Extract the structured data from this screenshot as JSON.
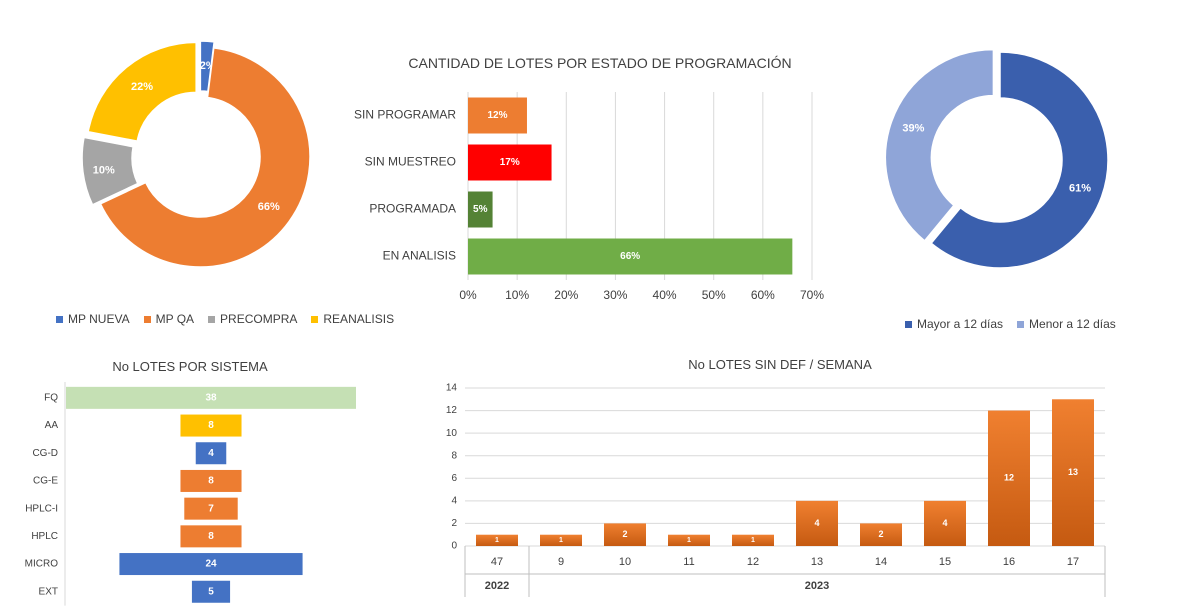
{
  "chart_data": [
    {
      "id": "donut_categoria",
      "type": "pie",
      "title": "",
      "categories": [
        "MP NUEVA",
        "MP QA",
        "PRECOMPRA",
        "REANALISIS"
      ],
      "values": [
        2,
        66,
        10,
        22
      ],
      "labels": [
        "2%",
        "66%",
        "10%",
        "22%"
      ],
      "colors": [
        "#4472C4",
        "#ED7D31",
        "#A5A5A5",
        "#FFC000"
      ],
      "legend": "bottom"
    },
    {
      "id": "barras_estado",
      "type": "bar",
      "orientation": "horizontal",
      "title": "CANTIDAD DE LOTES POR ESTADO DE PROGRAMACIÓN",
      "categories": [
        "SIN PROGRAMAR",
        "SIN MUESTREO",
        "PROGRAMADA",
        "EN ANALISIS"
      ],
      "values": [
        12,
        17,
        5,
        66
      ],
      "labels": [
        "12%",
        "17%",
        "5%",
        "66%"
      ],
      "colors": [
        "#ED7D31",
        "#FF0000",
        "#548235",
        "#70AD47"
      ],
      "xlim": [
        0,
        70
      ],
      "ticks": [
        "0%",
        "10%",
        "20%",
        "30%",
        "40%",
        "50%",
        "60%",
        "70%"
      ],
      "grid": true
    },
    {
      "id": "donut_dias",
      "type": "pie",
      "title": "",
      "categories": [
        "Mayor a 12 días",
        "Menor a 12 días"
      ],
      "values": [
        61,
        39
      ],
      "labels": [
        "61%",
        "39%"
      ],
      "colors": [
        "#3A5FAD",
        "#8FA5D8"
      ],
      "legend": "bottom"
    },
    {
      "id": "barras_sistema",
      "type": "bar",
      "orientation": "horizontal-centered",
      "title": "No LOTES POR SISTEMA",
      "categories": [
        "FQ",
        "AA",
        "CG-D",
        "CG-E",
        "HPLC-I",
        "HPLC",
        "MICRO",
        "EXT"
      ],
      "values": [
        38,
        8,
        4,
        8,
        7,
        8,
        24,
        5
      ],
      "colors": [
        "#C5E0B4",
        "#FFC000",
        "#4472C4",
        "#ED7D31",
        "#ED7D31",
        "#ED7D31",
        "#4472C4",
        "#4472C4"
      ]
    },
    {
      "id": "columnas_semana",
      "type": "bar",
      "title": "No LOTES SIN DEF / SEMANA",
      "categories": [
        "47",
        "9",
        "10",
        "11",
        "12",
        "13",
        "14",
        "15",
        "16",
        "17"
      ],
      "years": [
        {
          "label": "2022",
          "span": 1
        },
        {
          "label": "2023",
          "span": 9
        }
      ],
      "values": [
        1,
        1,
        2,
        1,
        1,
        4,
        2,
        4,
        12,
        13
      ],
      "ylim": [
        0,
        14
      ],
      "yticks": [
        0,
        2,
        4,
        6,
        8,
        10,
        12,
        14
      ],
      "grid": true,
      "color_top": "#F08030",
      "color_bottom": "#C55A11"
    }
  ]
}
